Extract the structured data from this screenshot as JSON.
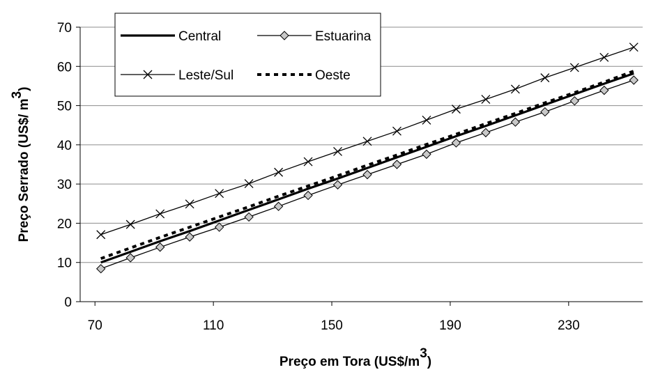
{
  "chart_data": {
    "type": "line",
    "title": "",
    "xlabel": "Preço em Tora (US$/m",
    "xlabel_sup": "3",
    "xlabel_close": ")",
    "ylabel": "Preço Serrado (US$/ m",
    "ylabel_sup": "3",
    "ylabel_close": ")",
    "xlim": [
      65,
      255
    ],
    "ylim": [
      0,
      70
    ],
    "xticks": [
      70,
      110,
      150,
      190,
      230
    ],
    "yticks": [
      0,
      10,
      20,
      30,
      40,
      50,
      60,
      70
    ],
    "grid": "horizontal",
    "legend_position": "top-left",
    "x": [
      72,
      82,
      92,
      102,
      112,
      122,
      132,
      142,
      152,
      162,
      172,
      182,
      192,
      202,
      212,
      222,
      232,
      242,
      252
    ],
    "series": [
      {
        "name": "Central",
        "style": "thick-solid",
        "color": "#000000",
        "values": [
          10.0,
          12.7,
          15.4,
          18.0,
          20.7,
          23.4,
          26.1,
          28.8,
          31.4,
          34.1,
          36.8,
          39.5,
          42.2,
          44.8,
          47.5,
          50.2,
          52.9,
          55.6,
          58.2
        ]
      },
      {
        "name": "Estuarina",
        "style": "solid-diamond",
        "color": "#000000",
        "marker_fill": "#c8c8c8",
        "values": [
          8.4,
          11.2,
          13.9,
          16.5,
          19.0,
          21.6,
          24.3,
          27.1,
          29.8,
          32.4,
          35.0,
          37.6,
          40.5,
          43.1,
          45.8,
          48.4,
          51.2,
          53.9,
          56.5
        ]
      },
      {
        "name": "Leste/Sul",
        "style": "solid-x",
        "color": "#000000",
        "values": [
          17.1,
          19.7,
          22.4,
          24.9,
          27.6,
          30.1,
          33.0,
          35.7,
          38.3,
          40.9,
          43.5,
          46.3,
          49.1,
          51.6,
          54.2,
          57.1,
          59.7,
          62.3,
          64.9
        ]
      },
      {
        "name": "Oeste",
        "style": "dotted",
        "color": "#000000",
        "values": [
          11.0,
          13.7,
          16.4,
          19.0,
          21.6,
          24.2,
          26.9,
          29.5,
          32.1,
          34.8,
          37.4,
          40.1,
          42.7,
          45.4,
          48.0,
          50.7,
          53.3,
          56.0,
          58.8
        ]
      }
    ]
  }
}
